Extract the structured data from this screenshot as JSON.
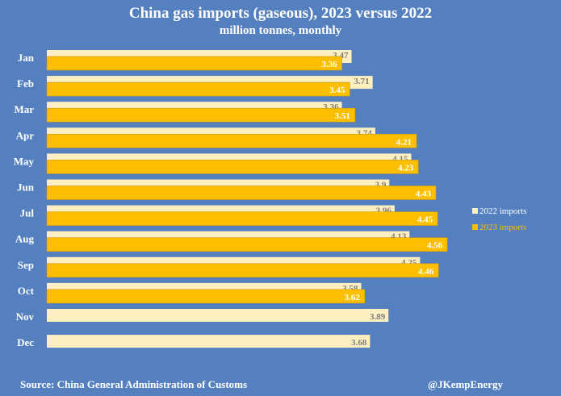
{
  "chart_data": {
    "type": "bar",
    "orientation": "horizontal",
    "title": "China gas imports (gaseous), 2023 versus 2022",
    "subtitle": "million tonnes, monthly",
    "categories": [
      "Jan",
      "Feb",
      "Mar",
      "Apr",
      "May",
      "Jun",
      "Jul",
      "Aug",
      "Sep",
      "Oct",
      "Nov",
      "Dec"
    ],
    "series": [
      {
        "name": "2022 imports",
        "color": "#fdefc0",
        "values": [
          3.47,
          3.71,
          3.36,
          3.74,
          4.15,
          3.9,
          3.96,
          4.13,
          4.25,
          3.58,
          3.89,
          3.68
        ]
      },
      {
        "name": "2023 imports",
        "color": "#fbbf00",
        "values": [
          3.36,
          3.45,
          3.51,
          4.21,
          4.23,
          4.43,
          4.45,
          4.56,
          4.46,
          3.62,
          null,
          null
        ]
      }
    ],
    "xlim": [
      0,
      5.8
    ],
    "grid": false,
    "legend": "right",
    "data_labels": true
  },
  "footer": {
    "source": "Source: China General Administration of Customs",
    "handle": "@JKempEnergy"
  },
  "colors": {
    "background": "#5580bf"
  }
}
